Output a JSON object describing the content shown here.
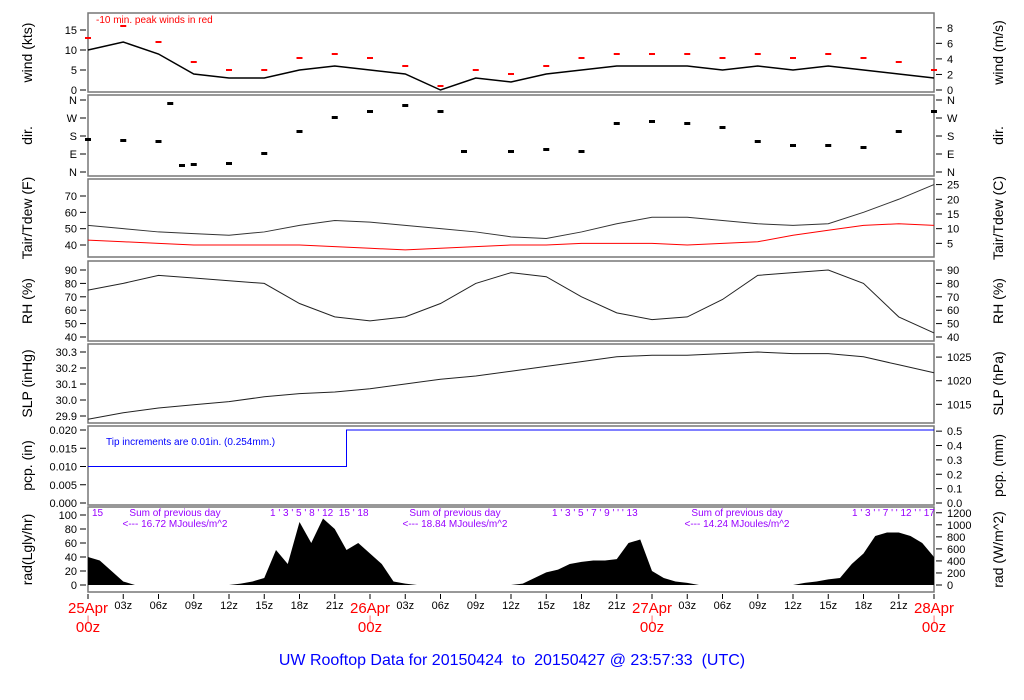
{
  "title": "UW Rooftop Data for 20150424  to  20150427 @ 23:57:33  (UTC)",
  "colors": {
    "title": "#0000ff",
    "day_label": "#ff0000",
    "peak": "#ff0000",
    "dew": "#ff0000",
    "pcp": "#0000ff",
    "rad_note": "#9900ff",
    "line": "#000000"
  },
  "x_axis": {
    "hours_per_tick": 3,
    "ticks": [
      "25Apr|00z",
      "03z",
      "06z",
      "09z",
      "12z",
      "15z",
      "18z",
      "21z",
      "26Apr|00z",
      "03z",
      "06z",
      "09z",
      "12z",
      "15z",
      "18z",
      "21z",
      "27Apr|00z",
      "03z",
      "06z",
      "09z",
      "12z",
      "15z",
      "18z",
      "21z",
      "28Apr|00z"
    ]
  },
  "chart_data": [
    {
      "id": "wind",
      "type": "line",
      "ylabel": "wind (kts)",
      "ylabel_right": "wind (m/s)",
      "annotation": "-10 min. peak winds in red",
      "left_ticks": [
        "0",
        "5",
        "10",
        "15"
      ],
      "right_ticks": [
        "0",
        "2",
        "4",
        "6",
        "8"
      ],
      "x_hours": [
        0,
        3,
        6,
        9,
        12,
        15,
        18,
        21,
        24,
        27,
        30,
        33,
        36,
        39,
        42,
        45,
        48,
        51,
        54,
        57,
        60,
        63,
        66,
        69,
        72
      ],
      "series": [
        {
          "values": [
            10,
            12,
            9,
            4,
            3,
            3,
            5,
            6,
            5,
            4,
            0,
            3,
            2,
            4,
            5,
            6,
            6,
            6,
            5,
            6,
            5,
            6,
            5,
            4,
            3
          ]
        },
        {
          "name": "10 min. peak winds",
          "values": [
            13,
            16,
            12,
            7,
            5,
            5,
            8,
            9,
            8,
            6,
            1,
            5,
            4,
            6,
            8,
            9,
            9,
            9,
            8,
            9,
            8,
            9,
            8,
            7,
            5
          ]
        }
      ]
    },
    {
      "id": "dir",
      "type": "scatter",
      "ylabel": "dir.",
      "ylabel_right": "dir.",
      "left_ticks": [
        "N",
        "E",
        "S",
        "W",
        "N"
      ],
      "right_ticks": [
        "N",
        "E",
        "S",
        "W",
        "N"
      ],
      "x_hours": [
        0,
        3,
        6,
        7,
        8,
        9,
        12,
        15,
        18,
        21,
        24,
        27,
        30,
        32,
        36,
        39,
        42,
        45,
        48,
        51,
        54,
        57,
        60,
        63,
        66,
        69,
        72
      ],
      "values_deg": [
        160,
        155,
        150,
        340,
        30,
        35,
        40,
        90,
        200,
        270,
        300,
        330,
        300,
        100,
        100,
        110,
        100,
        240,
        250,
        240,
        220,
        150,
        130,
        130,
        120,
        200,
        300
      ]
    },
    {
      "id": "temp",
      "type": "line",
      "ylabel": "Tair/Tdew (F)",
      "ylabel_right": "Tair/Tdew (C)",
      "left_ticks": [
        "40",
        "50",
        "60",
        "70"
      ],
      "right_ticks": [
        "5",
        "10",
        "15",
        "20",
        "25"
      ],
      "x_hours": [
        0,
        3,
        6,
        9,
        12,
        15,
        18,
        21,
        24,
        27,
        30,
        33,
        36,
        39,
        42,
        45,
        48,
        51,
        54,
        57,
        60,
        63,
        66,
        69,
        72
      ],
      "series": [
        {
          "name": "Tair",
          "values": [
            52,
            50,
            48,
            47,
            46,
            48,
            52,
            55,
            54,
            52,
            50,
            48,
            45,
            44,
            48,
            53,
            57,
            57,
            55,
            53,
            52,
            53,
            60,
            68,
            77
          ]
        },
        {
          "name": "Tdew",
          "values": [
            43,
            42,
            41,
            40,
            40,
            40,
            40,
            39,
            38,
            37,
            38,
            39,
            40,
            40,
            41,
            41,
            41,
            40,
            41,
            42,
            46,
            49,
            52,
            53,
            52
          ]
        }
      ]
    },
    {
      "id": "rh",
      "type": "line",
      "ylabel": "RH (%)",
      "ylabel_right": "RH (%)",
      "left_ticks": [
        "40",
        "50",
        "60",
        "70",
        "80",
        "90"
      ],
      "right_ticks": [
        "40",
        "50",
        "60",
        "70",
        "80",
        "90"
      ],
      "x_hours": [
        0,
        3,
        6,
        9,
        12,
        15,
        18,
        21,
        24,
        27,
        30,
        33,
        36,
        39,
        42,
        45,
        48,
        51,
        54,
        57,
        60,
        63,
        66,
        69,
        72
      ],
      "values": [
        75,
        80,
        86,
        84,
        82,
        80,
        65,
        55,
        52,
        55,
        65,
        80,
        88,
        85,
        70,
        58,
        53,
        55,
        68,
        86,
        88,
        90,
        80,
        55,
        43
      ]
    },
    {
      "id": "slp",
      "type": "line",
      "ylabel": "SLP (inHg)",
      "ylabel_right": "SLP (hPa)",
      "left_ticks": [
        "29.9",
        "30.0",
        "30.1",
        "30.2",
        "30.3"
      ],
      "right_ticks": [
        "1015",
        "1020",
        "1025"
      ],
      "x_hours": [
        0,
        3,
        6,
        9,
        12,
        15,
        18,
        21,
        24,
        27,
        30,
        33,
        36,
        39,
        42,
        45,
        48,
        51,
        54,
        57,
        60,
        63,
        66,
        69,
        72
      ],
      "values": [
        29.88,
        29.92,
        29.95,
        29.97,
        29.99,
        30.02,
        30.04,
        30.05,
        30.07,
        30.1,
        30.13,
        30.15,
        30.18,
        30.21,
        30.24,
        30.27,
        30.28,
        30.28,
        30.29,
        30.3,
        30.29,
        30.29,
        30.27,
        30.22,
        30.17
      ]
    },
    {
      "id": "pcp",
      "type": "line",
      "ylabel": "pcp. (in)",
      "ylabel_right": "pcp. (mm)",
      "annotation": "Tip increments are 0.01in. (0.254mm.)",
      "left_ticks": [
        "0.000",
        "0.005",
        "0.010",
        "0.015",
        "0.020"
      ],
      "right_ticks": [
        "0.0",
        "0.1",
        "0.2",
        "0.3",
        "0.4",
        "0.5"
      ],
      "x_hours": [
        0,
        22,
        22,
        72
      ],
      "values": [
        0.01,
        0.01,
        0.02,
        0.02
      ]
    },
    {
      "id": "rad",
      "type": "area",
      "ylabel": "rad(Lgly/hr)",
      "ylabel_right": "rad (W/m^2)",
      "left_ticks": [
        "0",
        "20",
        "40",
        "60",
        "80",
        "100"
      ],
      "right_ticks": [
        "0",
        "200",
        "400",
        "600",
        "800",
        "1000",
        "1200"
      ],
      "hour_marks": [
        "15",
        "1 ' 3 ' 5 ' 8 ' 12  15 ' 18",
        "1 ' 3 ' 5 ' 7 ' 9 ' ' ' 13",
        "1 ' 3 ' ' 7 ' ' 12 ' ' 17"
      ],
      "daily_sums": [
        {
          "line1": "Sum of previous day",
          "line2": "<--- 16.72 MJoules/m^2"
        },
        {
          "line1": "Sum of previous day",
          "line2": "<--- 18.84 MJoules/m^2"
        },
        {
          "line1": "Sum of previous day",
          "line2": "<--- 14.24 MJoules/m^2"
        }
      ],
      "x_hours": [
        0,
        1,
        2,
        3,
        4,
        12,
        13,
        14,
        15,
        16,
        17,
        18,
        19,
        20,
        21,
        22,
        23,
        24,
        25,
        26,
        27,
        28,
        36,
        37,
        38,
        39,
        40,
        41,
        42,
        43,
        44,
        45,
        46,
        47,
        48,
        49,
        50,
        51,
        52,
        60,
        61,
        62,
        63,
        64,
        65,
        66,
        67,
        68,
        69,
        70,
        71,
        72
      ],
      "values": [
        40,
        35,
        20,
        5,
        0,
        0,
        2,
        5,
        10,
        50,
        30,
        90,
        60,
        95,
        80,
        50,
        60,
        45,
        30,
        5,
        2,
        0,
        0,
        2,
        10,
        18,
        22,
        30,
        33,
        35,
        35,
        37,
        60,
        65,
        20,
        10,
        5,
        3,
        0,
        0,
        3,
        5,
        8,
        10,
        30,
        45,
        70,
        75,
        75,
        70,
        60,
        40
      ]
    }
  ]
}
